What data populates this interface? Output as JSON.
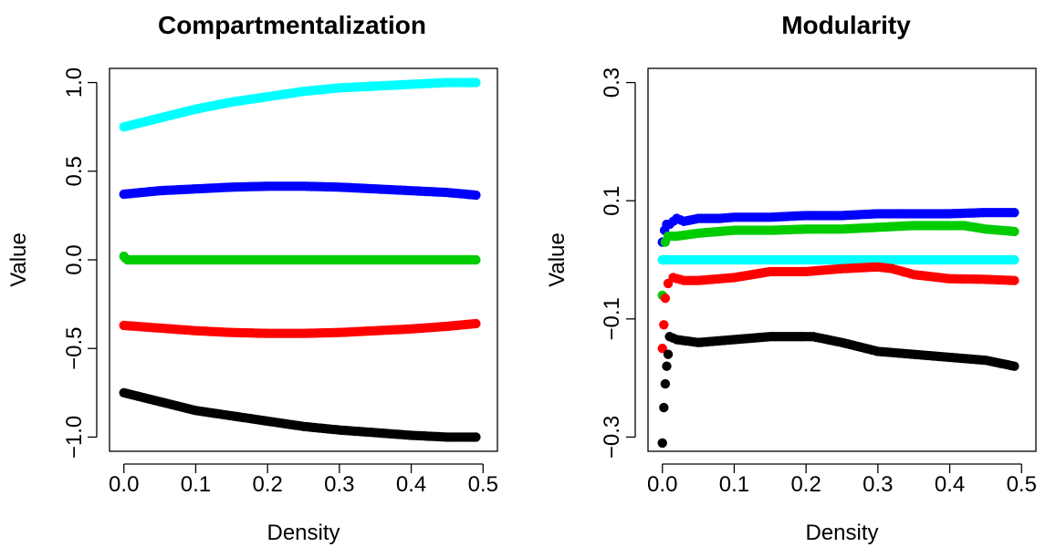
{
  "chart_data": [
    {
      "type": "scatter",
      "title": "Compartmentalization",
      "xlabel": "Density",
      "ylabel": "Value",
      "xlim": [
        0,
        0.5
      ],
      "ylim": [
        -1,
        1
      ],
      "xticks": [
        "0.0",
        "0.1",
        "0.2",
        "0.3",
        "0.4",
        "0.5"
      ],
      "yticks": [
        "−1.0",
        "−0.5",
        "0.0",
        "0.5",
        "1.0"
      ],
      "grid": false,
      "series": [
        {
          "color": "#00ffff",
          "x": [
            0.0,
            0.05,
            0.1,
            0.15,
            0.2,
            0.25,
            0.3,
            0.35,
            0.4,
            0.45,
            0.49
          ],
          "y": [
            0.75,
            0.8,
            0.85,
            0.89,
            0.92,
            0.95,
            0.97,
            0.98,
            0.99,
            1.0,
            1.0
          ]
        },
        {
          "color": "#0000ff",
          "x": [
            0.0,
            0.05,
            0.1,
            0.15,
            0.2,
            0.25,
            0.3,
            0.35,
            0.4,
            0.45,
            0.49
          ],
          "y": [
            0.37,
            0.39,
            0.4,
            0.41,
            0.415,
            0.415,
            0.41,
            0.4,
            0.39,
            0.38,
            0.365
          ]
        },
        {
          "color": "#00cc00",
          "x": [
            0.0,
            0.002,
            0.005,
            0.05,
            0.1,
            0.15,
            0.2,
            0.25,
            0.3,
            0.35,
            0.4,
            0.45,
            0.49
          ],
          "y": [
            0.02,
            0.01,
            0.0,
            0.0,
            0.0,
            0.0,
            0.0,
            0.0,
            0.0,
            0.0,
            0.0,
            0.0,
            0.0
          ]
        },
        {
          "color": "#ff0000",
          "x": [
            0.0,
            0.05,
            0.1,
            0.15,
            0.2,
            0.25,
            0.3,
            0.35,
            0.4,
            0.45,
            0.49
          ],
          "y": [
            -0.37,
            -0.385,
            -0.4,
            -0.41,
            -0.415,
            -0.415,
            -0.41,
            -0.4,
            -0.39,
            -0.375,
            -0.36
          ]
        },
        {
          "color": "#000000",
          "x": [
            0.0,
            0.05,
            0.1,
            0.15,
            0.2,
            0.25,
            0.3,
            0.35,
            0.4,
            0.45,
            0.49
          ],
          "y": [
            -0.75,
            -0.8,
            -0.85,
            -0.88,
            -0.91,
            -0.94,
            -0.96,
            -0.975,
            -0.99,
            -1.0,
            -1.0
          ]
        }
      ]
    },
    {
      "type": "scatter",
      "title": "Modularity",
      "xlabel": "Density",
      "ylabel": "Value",
      "xlim": [
        0,
        0.5
      ],
      "ylim": [
        -0.3,
        0.3
      ],
      "xticks": [
        "0.0",
        "0.1",
        "0.2",
        "0.3",
        "0.4",
        "0.5"
      ],
      "yticks": [
        "−0.3",
        "−0.1",
        "0.1",
        "0.3"
      ],
      "grid": false,
      "series": [
        {
          "color": "#0000ff",
          "x": [
            0.0,
            0.003,
            0.006,
            0.01,
            0.02,
            0.03,
            0.05,
            0.08,
            0.1,
            0.15,
            0.2,
            0.25,
            0.3,
            0.35,
            0.4,
            0.45,
            0.49
          ],
          "y": [
            0.03,
            0.05,
            0.06,
            0.06,
            0.07,
            0.065,
            0.07,
            0.07,
            0.072,
            0.072,
            0.075,
            0.075,
            0.078,
            0.078,
            0.078,
            0.08,
            0.08
          ]
        },
        {
          "color": "#00cc00",
          "x": [
            0.0,
            0.002,
            0.004,
            0.008,
            0.02,
            0.05,
            0.1,
            0.15,
            0.2,
            0.25,
            0.3,
            0.35,
            0.4,
            0.42,
            0.45,
            0.49
          ],
          "y": [
            -0.06,
            0.0,
            0.03,
            0.04,
            0.04,
            0.045,
            0.05,
            0.05,
            0.052,
            0.052,
            0.055,
            0.058,
            0.058,
            0.058,
            0.052,
            0.048
          ]
        },
        {
          "color": "#00ffff",
          "x": [
            0.0,
            0.05,
            0.1,
            0.15,
            0.2,
            0.25,
            0.3,
            0.35,
            0.4,
            0.45,
            0.49
          ],
          "y": [
            0.0,
            0.0,
            0.0,
            0.0,
            0.0,
            0.0,
            0.0,
            0.0,
            0.0,
            0.0,
            0.0
          ]
        },
        {
          "color": "#ff0000",
          "x": [
            0.0,
            0.002,
            0.004,
            0.008,
            0.015,
            0.03,
            0.05,
            0.1,
            0.15,
            0.2,
            0.25,
            0.3,
            0.32,
            0.35,
            0.4,
            0.45,
            0.49
          ],
          "y": [
            -0.15,
            -0.11,
            -0.065,
            -0.04,
            -0.03,
            -0.035,
            -0.035,
            -0.03,
            -0.02,
            -0.02,
            -0.015,
            -0.012,
            -0.015,
            -0.025,
            -0.032,
            -0.033,
            -0.035
          ]
        },
        {
          "color": "#000000",
          "x": [
            0.0,
            0.002,
            0.004,
            0.006,
            0.008,
            0.01,
            0.02,
            0.05,
            0.1,
            0.15,
            0.2,
            0.21,
            0.25,
            0.3,
            0.35,
            0.4,
            0.45,
            0.49
          ],
          "y": [
            -0.31,
            -0.25,
            -0.21,
            -0.18,
            -0.16,
            -0.13,
            -0.135,
            -0.14,
            -0.135,
            -0.13,
            -0.13,
            -0.13,
            -0.14,
            -0.155,
            -0.16,
            -0.165,
            -0.17,
            -0.18
          ]
        }
      ]
    }
  ]
}
